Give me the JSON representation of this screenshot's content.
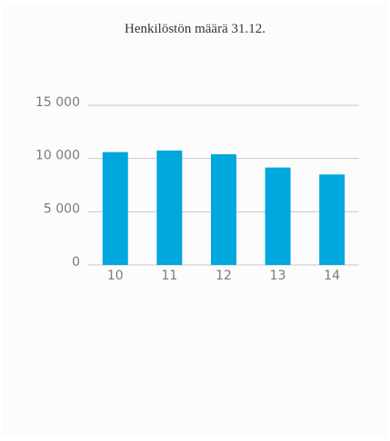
{
  "chart_data": {
    "type": "bar",
    "title": "Henkilöstön määrä 31.12.",
    "categories": [
      "10",
      "11",
      "12",
      "13",
      "14"
    ],
    "values": [
      10600,
      10750,
      10400,
      9150,
      8500
    ],
    "ylim": [
      0,
      15000
    ],
    "yticks": [
      0,
      5000,
      10000,
      15000
    ],
    "ytick_labels": [
      "0",
      "5 000",
      "10 000",
      "15 000"
    ],
    "xlabel": "",
    "ylabel": "",
    "grid": true,
    "legend": "none",
    "colors": {
      "bar": "#00a7dc",
      "grid": "#c8c8c8",
      "axis_text": "#7a7a7a"
    }
  }
}
